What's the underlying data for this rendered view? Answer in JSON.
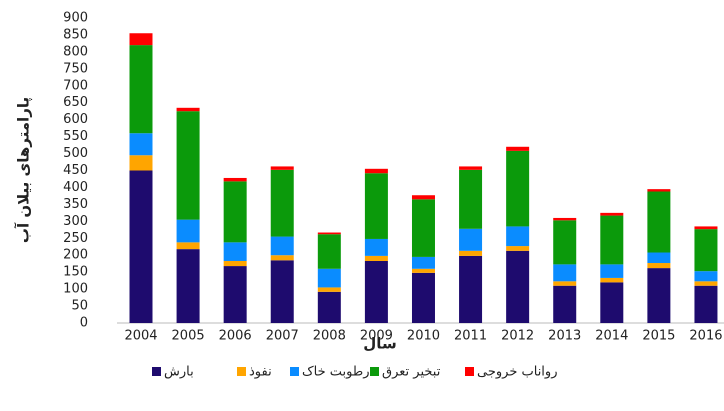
{
  "chart_data": {
    "type": "stacked_bar",
    "y_label": "پارامترهای بیلان آب",
    "x_label": "سال",
    "categories": [
      "2004",
      "2005",
      "2006",
      "2007",
      "2008",
      "2009",
      "2010",
      "2011",
      "2012",
      "2013",
      "2014",
      "2015",
      "2016"
    ],
    "series": [
      {
        "name": "بارش",
        "color": "#1e0b6e",
        "values": [
          450,
          218,
          168,
          185,
          92,
          183,
          148,
          198,
          213,
          110,
          120,
          162,
          110
        ]
      },
      {
        "name": "نفوذ",
        "color": "#ffa500",
        "values": [
          45,
          20,
          15,
          15,
          13,
          15,
          12,
          15,
          14,
          13,
          13,
          15,
          13
        ]
      },
      {
        "name": "رطوبت خاک",
        "color": "#0a8cff",
        "values": [
          65,
          67,
          55,
          55,
          55,
          50,
          35,
          65,
          58,
          50,
          40,
          31,
          30
        ]
      },
      {
        "name": "تبخیر تعرق",
        "color": "#0b9a0b",
        "values": [
          260,
          320,
          180,
          197,
          102,
          194,
          170,
          174,
          223,
          130,
          144,
          180,
          124
        ]
      },
      {
        "name": "رواناب خروجی",
        "color": "#ff0000",
        "values": [
          35,
          10,
          10,
          10,
          5,
          13,
          12,
          10,
          12,
          7,
          8,
          7,
          8
        ]
      }
    ],
    "ylim": [
      0,
      900
    ],
    "yticks": [
      0,
      50,
      100,
      150,
      200,
      250,
      300,
      350,
      400,
      450,
      500,
      550,
      600,
      650,
      700,
      750,
      800,
      850,
      900
    ],
    "grid": false,
    "legend": "bottom"
  }
}
